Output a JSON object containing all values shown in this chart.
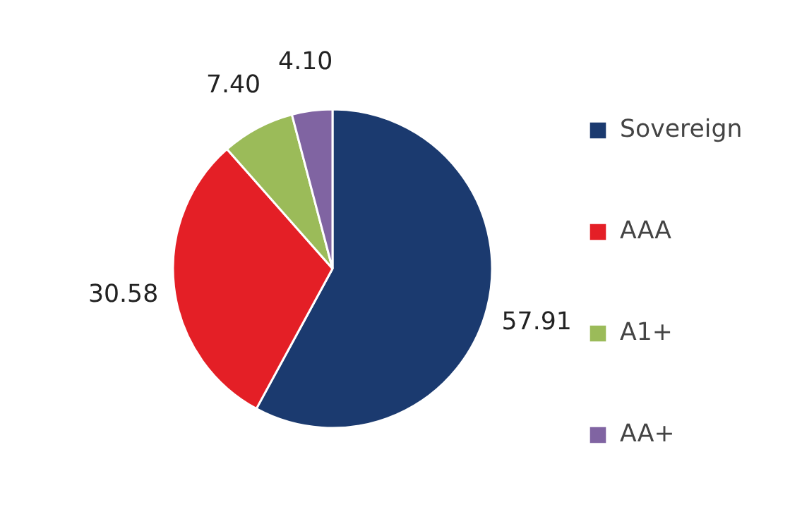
{
  "chart_data": {
    "type": "pie",
    "categories": [
      "Sovereign",
      "AAA",
      "A1+",
      "AA+"
    ],
    "values": [
      57.91,
      30.58,
      7.4,
      4.1
    ],
    "value_labels": [
      "57.91",
      "30.58",
      "7.40",
      "4.10"
    ],
    "colors": [
      "#1b3a6f",
      "#e41f26",
      "#9bbb59",
      "#8064a2"
    ],
    "legend": "right"
  }
}
